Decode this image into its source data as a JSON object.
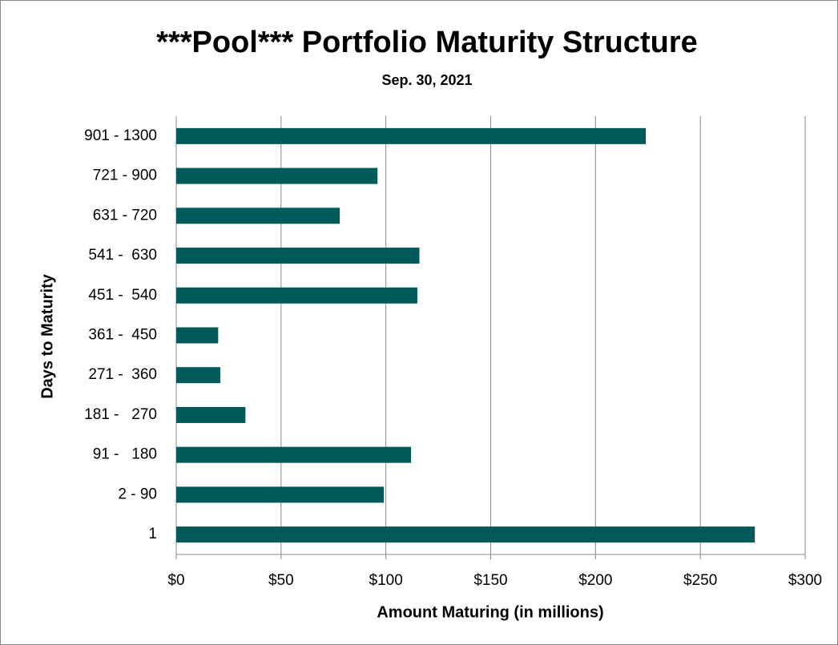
{
  "chart_data": {
    "type": "bar",
    "orientation": "horizontal",
    "title": "***Pool*** Portfolio Maturity Structure",
    "subtitle": "Sep. 30, 2021",
    "x_label": "Amount Maturing (in millions)",
    "y_label": "Days to Maturity",
    "categories": [
      "1",
      "2 - 90",
      "91 -   180",
      "181 -   270",
      "271 -  360",
      "361 -  450",
      "451 -  540",
      "541 -  630",
      "631 - 720",
      "721 - 900",
      "901 - 1300"
    ],
    "values": [
      276,
      99,
      112,
      33,
      21,
      20,
      115,
      116,
      78,
      96,
      224
    ],
    "color": "#005a5a",
    "xlim": [
      0,
      300
    ],
    "xticks": [
      {
        "value": 0,
        "label": "$0"
      },
      {
        "value": 50,
        "label": "$50"
      },
      {
        "value": 100,
        "label": "$100"
      },
      {
        "value": 150,
        "label": "$150"
      },
      {
        "value": 200,
        "label": "$200"
      },
      {
        "value": 250,
        "label": "$250"
      },
      {
        "value": 300,
        "label": "$300"
      }
    ],
    "grid": true
  }
}
